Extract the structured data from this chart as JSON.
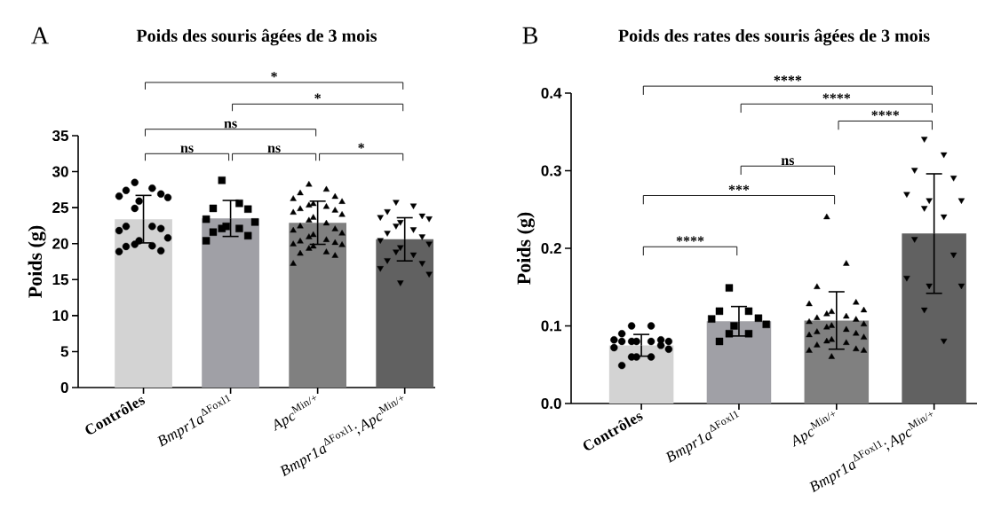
{
  "chart_data": [
    {
      "type": "bar",
      "title": "Poids des souris âgées de 3 mois",
      "ylabel": "Poids (g)",
      "categories": [
        "**Contrôles**",
        "*Bmpr1a*$^{ΔFoxl1}$",
        "*Apc*$^{Min/+}$",
        "*Bmpr1a*$^{ΔFoxl1}$;*Apc*$^{Min/+}$"
      ],
      "ylim": [
        0,
        35
      ],
      "yticks": [
        0,
        5,
        10,
        15,
        20,
        25,
        30,
        35
      ],
      "annotations": [
        "A",
        "*",
        "*",
        "ns",
        "ns",
        "ns",
        "*"
      ],
      "series": [
        {
          "type": "bar",
          "colors": [
            "#d3d3d3",
            "#a0a0a6",
            "#808080",
            "#616161"
          ],
          "values": [
            23.4,
            23.5,
            22.9,
            20.6
          ],
          "errors": [
            3.3,
            2.5,
            3.0,
            3.0
          ]
        },
        {
          "type": "scatter",
          "marker": "circle",
          "color": "#000000",
          "x": [
            "**Contrôles**",
            "**Contrôles**",
            "**Contrôles**",
            "**Contrôles**",
            "**Contrôles**",
            "**Contrôles**",
            "**Contrôles**",
            "**Contrôles**",
            "**Contrôles**",
            "**Contrôles**",
            "**Contrôles**",
            "**Contrôles**",
            "**Contrôles**",
            "**Contrôles**",
            "**Contrôles**",
            "**Contrôles**",
            "**Contrôles**",
            "**Contrôles**",
            "**Contrôles**"
          ],
          "values": [
            28.5,
            27.7,
            27.4,
            26.9,
            26.6,
            26.4,
            25.9,
            24.9,
            22.4,
            22.4,
            22.1,
            21.8,
            20.8,
            20.4,
            19.9,
            19.7,
            19.6,
            19.0,
            18.9
          ]
        },
        {
          "type": "scatter",
          "marker": "square",
          "color": "#000000",
          "x": [
            "*Bmpr1a*$^{ΔFoxl1}$",
            "*Bmpr1a*$^{ΔFoxl1}$",
            "*Bmpr1a*$^{ΔFoxl1}$",
            "*Bmpr1a*$^{ΔFoxl1}$",
            "*Bmpr1a*$^{ΔFoxl1}$",
            "*Bmpr1a*$^{ΔFoxl1}$",
            "*Bmpr1a*$^{ΔFoxl1}$",
            "*Bmpr1a*$^{ΔFoxl1}$",
            "*Bmpr1a*$^{ΔFoxl1}$",
            "*Bmpr1a*$^{ΔFoxl1}$",
            "*Bmpr1a*$^{ΔFoxl1}$",
            "*Bmpr1a*$^{ΔFoxl1}$"
          ],
          "values": [
            28.8,
            25.6,
            24.9,
            24.8,
            23.4,
            23.0,
            22.4,
            22.1,
            22.1,
            21.6,
            21.1,
            20.4
          ]
        },
        {
          "type": "scatter",
          "marker": "triangle",
          "color": "#000000",
          "x": [
            "*Apc*$^{Min/+}$",
            "*Apc*$^{Min/+}$",
            "*Apc*$^{Min/+}$",
            "*Apc*$^{Min/+}$",
            "*Apc*$^{Min/+}$",
            "*Apc*$^{Min/+}$",
            "*Apc*$^{Min/+}$",
            "*Apc*$^{Min/+}$",
            "*Apc*$^{Min/+}$",
            "*Apc*$^{Min/+}$",
            "*Apc*$^{Min/+}$",
            "*Apc*$^{Min/+}$",
            "*Apc*$^{Min/+}$",
            "*Apc*$^{Min/+}$",
            "*Apc*$^{Min/+}$",
            "*Apc*$^{Min/+}$",
            "*Apc*$^{Min/+}$",
            "*Apc*$^{Min/+}$",
            "*Apc*$^{Min/+}$",
            "*Apc*$^{Min/+}$",
            "*Apc*$^{Min/+}$",
            "*Apc*$^{Min/+}$",
            "*Apc*$^{Min/+}$",
            "*Apc*$^{Min/+}$",
            "*Apc*$^{Min/+}$",
            "*Apc*$^{Min/+}$",
            "*Apc*$^{Min/+}$",
            "*Apc*$^{Min/+}$",
            "*Apc*$^{Min/+}$",
            "*Apc*$^{Min/+}$",
            "*Apc*$^{Min/+}$",
            "*Apc*$^{Min/+}$",
            "*Apc*$^{Min/+}$"
          ],
          "values": [
            28.2,
            27.5,
            27.0,
            26.5,
            26.2,
            25.8,
            25.5,
            25.3,
            25.1,
            24.8,
            24.6,
            24.3,
            24.0,
            23.6,
            23.2,
            22.8,
            22.4,
            22.0,
            21.8,
            21.4,
            21.2,
            20.9,
            20.5,
            20.3,
            20.1,
            19.9,
            19.8,
            19.6,
            19.3,
            18.8,
            18.6,
            18.3,
            17.2
          ]
        },
        {
          "type": "scatter",
          "marker": "triangle-down",
          "color": "#000000",
          "x": [
            "*Bmpr1a*$^{ΔFoxl1}$;*Apc*$^{Min/+}$",
            "*Bmpr1a*$^{ΔFoxl1}$;*Apc*$^{Min/+}$",
            "*Bmpr1a*$^{ΔFoxl1}$;*Apc*$^{Min/+}$",
            "*Bmpr1a*$^{ΔFoxl1}$;*Apc*$^{Min/+}$",
            "*Bmpr1a*$^{ΔFoxl1}$;*Apc*$^{Min/+}$",
            "*Bmpr1a*$^{ΔFoxl1}$;*Apc*$^{Min/+}$",
            "*Bmpr1a*$^{ΔFoxl1}$;*Apc*$^{Min/+}$",
            "*Bmpr1a*$^{ΔFoxl1}$;*Apc*$^{Min/+}$",
            "*Bmpr1a*$^{ΔFoxl1}$;*Apc*$^{Min/+}$",
            "*Bmpr1a*$^{ΔFoxl1}$;*Apc*$^{Min/+}$",
            "*Bmpr1a*$^{ΔFoxl1}$;*Apc*$^{Min/+}$",
            "*Bmpr1a*$^{ΔFoxl1}$;*Apc*$^{Min/+}$",
            "*Bmpr1a*$^{ΔFoxl1}$;*Apc*$^{Min/+}$",
            "*Bmpr1a*$^{ΔFoxl1}$;*Apc*$^{Min/+}$",
            "*Bmpr1a*$^{ΔFoxl1}$;*Apc*$^{Min/+}$",
            "*Bmpr1a*$^{ΔFoxl1}$;*Apc*$^{Min/+}$",
            "*Bmpr1a*$^{ΔFoxl1}$;*Apc*$^{Min/+}$",
            "*Bmpr1a*$^{ΔFoxl1}$;*Apc*$^{Min/+}$",
            "*Bmpr1a*$^{ΔFoxl1}$;*Apc*$^{Min/+}$",
            "*Bmpr1a*$^{ΔFoxl1}$;*Apc*$^{Min/+}$",
            "*Bmpr1a*$^{ΔFoxl1}$;*Apc*$^{Min/+}$"
          ],
          "values": [
            25.8,
            25.3,
            24.5,
            23.9,
            23.7,
            23.5,
            23.0,
            22.5,
            22.0,
            21.5,
            21.0,
            20.5,
            20.0,
            19.5,
            18.9,
            18.5,
            17.7,
            17.3,
            16.6,
            15.8,
            14.6
          ]
        }
      ]
    },
    {
      "type": "bar",
      "title": "Poids des rates des souris âgées de 3 mois",
      "ylabel": "Poids (g)",
      "categories": [
        "**Contrôles**",
        "*Bmpr1a*$^{ΔFoxl1}$",
        "*Apc*$^{Min/+}$",
        "*Bmpr1a*$^{ΔFoxl1}$;*Apc*$^{Min/+}$"
      ],
      "ylim": [
        0,
        0.4
      ],
      "yticks": [
        {
          "value": 0,
          "label": "0.0"
        },
        0.1,
        0.2,
        0.3,
        0.4
      ],
      "annotations": [
        "B",
        "****",
        "****",
        "****",
        "ns",
        "***",
        "****"
      ],
      "series": [
        {
          "type": "bar",
          "colors": [
            "#d3d3d3",
            "#a0a0a6",
            "#808080",
            "#616161"
          ],
          "values": [
            0.075,
            0.106,
            0.107,
            0.219
          ],
          "errors": [
            0.014,
            0.019,
            0.037,
            0.077
          ]
        },
        {
          "type": "scatter",
          "marker": "circle",
          "color": "#000000",
          "x": [
            "**Contrôles**",
            "**Contrôles**",
            "**Contrôles**",
            "**Contrôles**",
            "**Contrôles**",
            "**Contrôles**",
            "**Contrôles**",
            "**Contrôles**",
            "**Contrôles**",
            "**Contrôles**",
            "**Contrôles**",
            "**Contrôles**",
            "**Contrôles**",
            "**Contrôles**",
            "**Contrôles**",
            "**Contrôles**",
            "**Contrôles**"
          ],
          "values": [
            0.1,
            0.1,
            0.09,
            0.082,
            0.082,
            0.08,
            0.08,
            0.08,
            0.08,
            0.08,
            0.075,
            0.072,
            0.07,
            0.06,
            0.06,
            0.06,
            0.049
          ]
        },
        {
          "type": "scatter",
          "marker": "square",
          "color": "#000000",
          "x": [
            "*Bmpr1a*$^{ΔFoxl1}$",
            "*Bmpr1a*$^{ΔFoxl1}$",
            "*Bmpr1a*$^{ΔFoxl1}$",
            "*Bmpr1a*$^{ΔFoxl1}$",
            "*Bmpr1a*$^{ΔFoxl1}$",
            "*Bmpr1a*$^{ΔFoxl1}$",
            "*Bmpr1a*$^{ΔFoxl1}$",
            "*Bmpr1a*$^{ΔFoxl1}$",
            "*Bmpr1a*$^{ΔFoxl1}$",
            "*Bmpr1a*$^{ΔFoxl1}$"
          ],
          "values": [
            0.149,
            0.119,
            0.119,
            0.11,
            0.109,
            0.102,
            0.1,
            0.09,
            0.09,
            0.08
          ]
        },
        {
          "type": "scatter",
          "marker": "triangle",
          "color": "#000000",
          "x": [
            "*Apc*$^{Min/+}$",
            "*Apc*$^{Min/+}$",
            "*Apc*$^{Min/+}$",
            "*Apc*$^{Min/+}$",
            "*Apc*$^{Min/+}$",
            "*Apc*$^{Min/+}$",
            "*Apc*$^{Min/+}$",
            "*Apc*$^{Min/+}$",
            "*Apc*$^{Min/+}$",
            "*Apc*$^{Min/+}$",
            "*Apc*$^{Min/+}$",
            "*Apc*$^{Min/+}$",
            "*Apc*$^{Min/+}$",
            "*Apc*$^{Min/+}$",
            "*Apc*$^{Min/+}$",
            "*Apc*$^{Min/+}$",
            "*Apc*$^{Min/+}$",
            "*Apc*$^{Min/+}$",
            "*Apc*$^{Min/+}$",
            "*Apc*$^{Min/+}$",
            "*Apc*$^{Min/+}$",
            "*Apc*$^{Min/+}$",
            "*Apc*$^{Min/+}$",
            "*Apc*$^{Min/+}$",
            "*Apc*$^{Min/+}$",
            "*Apc*$^{Min/+}$",
            "*Apc*$^{Min/+}$",
            "*Apc*$^{Min/+}$"
          ],
          "values": [
            0.24,
            0.18,
            0.15,
            0.13,
            0.128,
            0.12,
            0.118,
            0.115,
            0.112,
            0.11,
            0.108,
            0.105,
            0.102,
            0.1,
            0.098,
            0.095,
            0.092,
            0.09,
            0.088,
            0.085,
            0.082,
            0.08,
            0.078,
            0.075,
            0.07,
            0.068,
            0.068,
            0.06
          ]
        },
        {
          "type": "scatter",
          "marker": "triangle-down",
          "color": "#000000",
          "x": [
            "*Bmpr1a*$^{ΔFoxl1}$;*Apc*$^{Min/+}$",
            "*Bmpr1a*$^{ΔFoxl1}$;*Apc*$^{Min/+}$",
            "*Bmpr1a*$^{ΔFoxl1}$;*Apc*$^{Min/+}$",
            "*Bmpr1a*$^{ΔFoxl1}$;*Apc*$^{Min/+}$",
            "*Bmpr1a*$^{ΔFoxl1}$;*Apc*$^{Min/+}$",
            "*Bmpr1a*$^{ΔFoxl1}$;*Apc*$^{Min/+}$",
            "*Bmpr1a*$^{ΔFoxl1}$;*Apc*$^{Min/+}$",
            "*Bmpr1a*$^{ΔFoxl1}$;*Apc*$^{Min/+}$",
            "*Bmpr1a*$^{ΔFoxl1}$;*Apc*$^{Min/+}$",
            "*Bmpr1a*$^{ΔFoxl1}$;*Apc*$^{Min/+}$",
            "*Bmpr1a*$^{ΔFoxl1}$;*Apc*$^{Min/+}$",
            "*Bmpr1a*$^{ΔFoxl1}$;*Apc*$^{Min/+}$",
            "*Bmpr1a*$^{ΔFoxl1}$;*Apc*$^{Min/+}$",
            "*Bmpr1a*$^{ΔFoxl1}$;*Apc*$^{Min/+}$",
            "*Bmpr1a*$^{ΔFoxl1}$;*Apc*$^{Min/+}$",
            "*Bmpr1a*$^{ΔFoxl1}$;*Apc*$^{Min/+}$"
          ],
          "values": [
            0.341,
            0.321,
            0.301,
            0.291,
            0.27,
            0.262,
            0.262,
            0.252,
            0.241,
            0.212,
            0.192,
            0.162,
            0.152,
            0.152,
            0.121,
            0.081
          ]
        }
      ]
    }
  ]
}
